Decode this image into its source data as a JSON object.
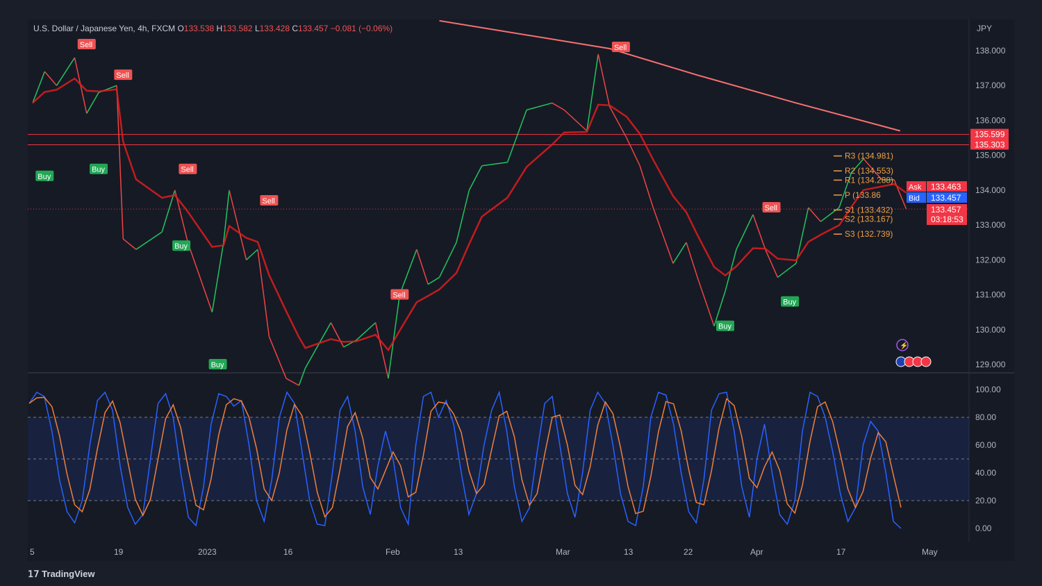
{
  "header": {
    "symbol": "U.S. Dollar / Japanese Yen, 4h, FXCM",
    "open_label": "O",
    "open": "133.538",
    "high_label": "H",
    "high": "133.582",
    "low_label": "L",
    "low": "133.428",
    "close_label": "C",
    "close": "133.457",
    "change": "−0.081 (−0.06%)"
  },
  "currency": "JPY",
  "branding": "TradingView",
  "colors": {
    "up": "#22c55e",
    "down": "#ef4444",
    "ma_long": "#f87171",
    "pivot": "#f0a046",
    "bid": "#2962ff",
    "ask": "#f23645",
    "stoch_k": "#2962ff",
    "stoch_d": "#f0803c"
  },
  "chart_data": [
    {
      "type": "line",
      "title": "",
      "ylim": [
        128.5,
        139.0
      ],
      "y_ticks": [
        "138.000",
        "137.000",
        "136.000",
        "135.000",
        "134.000",
        "133.000",
        "132.000",
        "131.000",
        "130.000",
        "129.000"
      ],
      "x_ticks": [
        "5",
        "19",
        "2023",
        "16",
        "Feb",
        "13",
        "Mar",
        "13",
        "22",
        "Apr",
        "17",
        "May"
      ],
      "series": [
        {
          "points": [
            [
              "2022-12-05",
              136.5
            ],
            [
              "2022-12-07",
              137.4
            ],
            [
              "2022-12-09",
              137.0
            ],
            [
              "2022-12-12",
              137.8
            ],
            [
              "2022-12-14",
              136.2
            ],
            [
              "2022-12-16",
              136.8
            ],
            [
              "2022-12-19",
              137.0
            ],
            [
              "2022-12-20",
              132.6
            ],
            [
              "2022-12-22",
              132.3
            ],
            [
              "2022-12-26",
              132.8
            ],
            [
              "2022-12-28",
              134.0
            ],
            [
              "2022-12-30",
              132.5
            ],
            [
              "2023-01-03",
              130.5
            ],
            [
              "2023-01-05",
              132.5
            ],
            [
              "2023-01-06",
              134.0
            ],
            [
              "2023-01-09",
              132.0
            ],
            [
              "2023-01-11",
              132.3
            ],
            [
              "2023-01-13",
              129.8
            ],
            [
              "2023-01-16",
              128.6
            ],
            [
              "2023-01-18",
              128.4
            ],
            [
              "2023-01-19",
              128.9
            ],
            [
              "2023-01-23",
              130.2
            ],
            [
              "2023-01-25",
              129.5
            ],
            [
              "2023-01-27",
              129.7
            ],
            [
              "2023-01-30",
              130.2
            ],
            [
              "2023-02-01",
              128.6
            ],
            [
              "2023-02-03",
              131.0
            ],
            [
              "2023-02-06",
              132.3
            ],
            [
              "2023-02-08",
              131.3
            ],
            [
              "2023-02-10",
              131.5
            ],
            [
              "2023-02-13",
              132.5
            ],
            [
              "2023-02-15",
              134.0
            ],
            [
              "2023-02-17",
              134.7
            ],
            [
              "2023-02-21",
              134.8
            ],
            [
              "2023-02-24",
              136.3
            ],
            [
              "2023-02-28",
              136.5
            ],
            [
              "2023-03-02",
              136.3
            ],
            [
              "2023-03-06",
              135.7
            ],
            [
              "2023-03-08",
              137.9
            ],
            [
              "2023-03-10",
              136.4
            ],
            [
              "2023-03-13",
              135.5
            ],
            [
              "2023-03-15",
              134.7
            ],
            [
              "2023-03-17",
              133.5
            ],
            [
              "2023-03-20",
              131.9
            ],
            [
              "2023-03-22",
              132.5
            ],
            [
              "2023-03-24",
              131.5
            ],
            [
              "2023-03-27",
              130.1
            ],
            [
              "2023-03-29",
              131.1
            ],
            [
              "2023-03-31",
              132.3
            ],
            [
              "2023-04-03",
              133.3
            ],
            [
              "2023-04-05",
              132.3
            ],
            [
              "2023-04-07",
              131.5
            ],
            [
              "2023-04-10",
              131.9
            ],
            [
              "2023-04-12",
              133.5
            ],
            [
              "2023-04-14",
              133.1
            ],
            [
              "2023-04-17",
              133.5
            ],
            [
              "2023-04-19",
              134.5
            ],
            [
              "2023-04-21",
              134.9
            ],
            [
              "2023-04-24",
              134.3
            ],
            [
              "2023-04-26",
              134.3
            ],
            [
              "2023-04-28",
              133.457
            ]
          ]
        },
        {
          "name": "",
          "kind": "long-ma",
          "points": [
            [
              "2023-02-10",
              138.86
            ],
            [
              "2023-03-10",
              138.06
            ],
            [
              "2023-03-24",
              137.3
            ],
            [
              "2023-04-10",
              136.5
            ],
            [
              "2023-04-27",
              135.7
            ]
          ]
        }
      ],
      "signals": [
        {
          "type": "Sell",
          "date": "2022-12-14",
          "price": 138.5
        },
        {
          "type": "Sell",
          "date": "2022-12-20",
          "price": 137.3
        },
        {
          "type": "Buy",
          "date": "2022-12-07",
          "price": 134.4
        },
        {
          "type": "Buy",
          "date": "2022-12-16",
          "price": 134.6
        },
        {
          "type": "Sell",
          "date": "2022-12-30",
          "price": 134.6
        },
        {
          "type": "Buy",
          "date": "2022-12-29",
          "price": 132.4
        },
        {
          "type": "Sell",
          "date": "2023-01-13",
          "price": 133.7
        },
        {
          "type": "Buy",
          "date": "2023-01-04",
          "price": 129.0
        },
        {
          "type": "Sell",
          "date": "2023-02-03",
          "price": 131.0
        },
        {
          "type": "Sell",
          "date": "2023-03-12",
          "price": 138.1
        },
        {
          "type": "Buy",
          "date": "2023-03-29",
          "price": 130.1
        },
        {
          "type": "Sell",
          "date": "2023-04-06",
          "price": 133.5
        },
        {
          "type": "Buy",
          "date": "2023-04-09",
          "price": 130.8
        }
      ],
      "horizontal_levels": [
        {
          "value": 135.599,
          "label": "135.599"
        },
        {
          "value": 135.303,
          "label": "135.303"
        }
      ],
      "pivots": [
        {
          "label": "R3 (134.981)",
          "value": 134.981
        },
        {
          "label": "R2 (134.553)",
          "value": 134.553
        },
        {
          "label": "R1 (134.288)",
          "value": 134.288
        },
        {
          "label": "P (133.86",
          "value": 133.86
        },
        {
          "label": "S1 (133.432)",
          "value": 133.432
        },
        {
          "label": "S2 (133.167)",
          "value": 133.167
        },
        {
          "label": "S3 (132.739)",
          "value": 132.739
        }
      ],
      "price_tags": {
        "ask_label": "Ask",
        "ask": "133.463",
        "bid_label": "Bid",
        "bid": "133.457",
        "last": "133.457",
        "countdown": "03:18:53"
      }
    },
    {
      "type": "line",
      "title": "",
      "ylim": [
        0,
        100
      ],
      "y_ticks": [
        "100.00",
        "80.00",
        "60.00",
        "40.00",
        "20.00",
        "0.00"
      ],
      "bands": [
        20,
        80
      ],
      "midline": 50,
      "stoch_k": [
        90,
        98,
        95,
        70,
        35,
        12,
        4,
        20,
        60,
        92,
        98,
        85,
        45,
        15,
        3,
        10,
        50,
        90,
        97,
        80,
        40,
        8,
        2,
        30,
        75,
        97,
        95,
        88,
        92,
        60,
        20,
        5,
        35,
        80,
        98,
        90,
        55,
        20,
        3,
        2,
        40,
        85,
        95,
        70,
        30,
        10,
        45,
        70,
        50,
        15,
        3,
        60,
        95,
        98,
        80,
        92,
        75,
        40,
        10,
        25,
        60,
        85,
        98,
        70,
        30,
        5,
        15,
        55,
        90,
        95,
        60,
        25,
        8,
        40,
        85,
        98,
        90,
        60,
        25,
        5,
        2,
        30,
        80,
        98,
        96,
        75,
        40,
        12,
        4,
        35,
        85,
        97,
        98,
        70,
        30,
        8,
        50,
        75,
        40,
        10,
        3,
        20,
        70,
        98,
        95,
        80,
        55,
        25,
        5,
        15,
        60,
        77,
        70,
        40,
        5,
        0
      ]
    }
  ]
}
